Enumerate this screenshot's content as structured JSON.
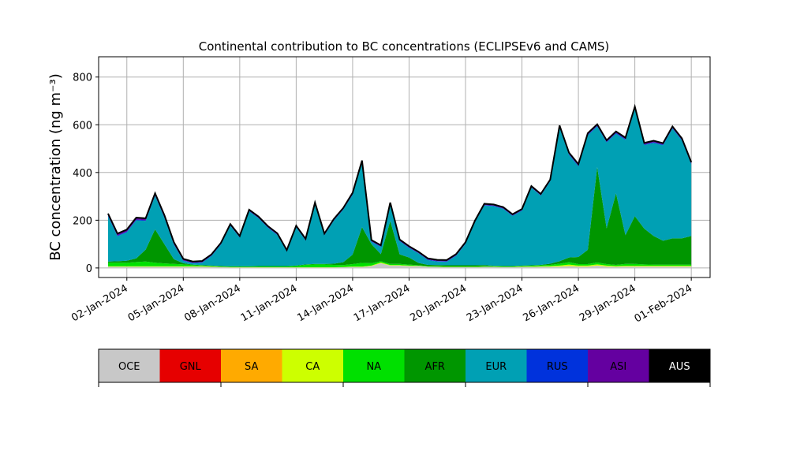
{
  "chart_data": {
    "type": "area",
    "title": "Continental contribution to BC concentrations (ECLIPSEv6 and CAMS)",
    "ylabel": "BC concentration (ng m⁻³)",
    "xlabel": "",
    "stacked": true,
    "grid": true,
    "ylim": [
      -40,
      885
    ],
    "xlim": [
      "2023-12-31T12:00",
      "2024-02-02T00:00"
    ],
    "yticks": [
      0,
      200,
      400,
      600,
      800
    ],
    "ytick_labels": [
      "0",
      "200",
      "400",
      "600",
      "800"
    ],
    "xticks": [
      "2024-01-02",
      "2024-01-05",
      "2024-01-08",
      "2024-01-11",
      "2024-01-14",
      "2024-01-17",
      "2024-01-20",
      "2024-01-23",
      "2024-01-26",
      "2024-01-29",
      "2024-02-01"
    ],
    "xtick_labels": [
      "02-Jan-2024",
      "05-Jan-2024",
      "08-Jan-2024",
      "11-Jan-2024",
      "14-Jan-2024",
      "17-Jan-2024",
      "20-Jan-2024",
      "23-Jan-2024",
      "26-Jan-2024",
      "29-Jan-2024",
      "01-Feb-2024"
    ],
    "x": [
      "2024-01-01T00:00",
      "2024-01-01T12:00",
      "2024-01-02T00:00",
      "2024-01-02T12:00",
      "2024-01-03T00:00",
      "2024-01-03T12:00",
      "2024-01-04T00:00",
      "2024-01-04T12:00",
      "2024-01-05T00:00",
      "2024-01-05T12:00",
      "2024-01-06T00:00",
      "2024-01-06T12:00",
      "2024-01-07T00:00",
      "2024-01-07T12:00",
      "2024-01-08T00:00",
      "2024-01-08T12:00",
      "2024-01-09T00:00",
      "2024-01-09T12:00",
      "2024-01-10T00:00",
      "2024-01-10T12:00",
      "2024-01-11T00:00",
      "2024-01-11T12:00",
      "2024-01-12T00:00",
      "2024-01-12T12:00",
      "2024-01-13T00:00",
      "2024-01-13T12:00",
      "2024-01-14T00:00",
      "2024-01-14T12:00",
      "2024-01-15T00:00",
      "2024-01-15T12:00",
      "2024-01-16T00:00",
      "2024-01-16T12:00",
      "2024-01-17T00:00",
      "2024-01-17T12:00",
      "2024-01-18T00:00",
      "2024-01-18T12:00",
      "2024-01-19T00:00",
      "2024-01-19T12:00",
      "2024-01-20T00:00",
      "2024-01-20T12:00",
      "2024-01-21T00:00",
      "2024-01-21T12:00",
      "2024-01-22T00:00",
      "2024-01-22T12:00",
      "2024-01-23T00:00",
      "2024-01-23T12:00",
      "2024-01-24T00:00",
      "2024-01-24T12:00",
      "2024-01-25T00:00",
      "2024-01-25T12:00",
      "2024-01-26T00:00",
      "2024-01-26T12:00",
      "2024-01-27T00:00",
      "2024-01-27T12:00",
      "2024-01-28T00:00",
      "2024-01-28T12:00",
      "2024-01-29T00:00",
      "2024-01-29T12:00",
      "2024-01-30T00:00",
      "2024-01-30T12:00",
      "2024-01-31T00:00",
      "2024-01-31T12:00",
      "2024-02-01T00:00"
    ],
    "series": [
      {
        "name": "OCE",
        "color": "#c8c8c8",
        "values": [
          5,
          5,
          5,
          5,
          5,
          5,
          5,
          5,
          5,
          5,
          5,
          4,
          3,
          2,
          2,
          2,
          2,
          2,
          2,
          2,
          2,
          2,
          2,
          2,
          2,
          3,
          4,
          4,
          8,
          20,
          10,
          10,
          8,
          8,
          5,
          4,
          3,
          3,
          3,
          3,
          4,
          4,
          3,
          3,
          4,
          4,
          5,
          5,
          6,
          8,
          6,
          6,
          10,
          6,
          5,
          6,
          6,
          6,
          6,
          6,
          6,
          6,
          6
        ]
      },
      {
        "name": "GNL",
        "color": "#e60000",
        "values": [
          0,
          0,
          0,
          0,
          0,
          0,
          0,
          0,
          0,
          0,
          0,
          0,
          0,
          0,
          0,
          0,
          0,
          0,
          0,
          0,
          0,
          0,
          0,
          0,
          0,
          0,
          0,
          0,
          0,
          0,
          0,
          0,
          0,
          0,
          0,
          0,
          0,
          0,
          0,
          0,
          0,
          0,
          0,
          0,
          0,
          0,
          0,
          0,
          0,
          0,
          0,
          0,
          0,
          0,
          0,
          0,
          0,
          0,
          0,
          0,
          0,
          0,
          0
        ]
      },
      {
        "name": "SA",
        "color": "#ffaa00",
        "values": [
          0,
          0,
          0,
          0,
          0,
          0,
          0,
          0,
          0,
          0,
          0,
          0,
          0,
          0,
          0,
          0,
          0,
          0,
          0,
          0,
          0,
          0,
          0,
          0,
          0,
          0,
          0,
          0,
          0,
          0,
          0,
          0,
          0,
          0,
          0,
          0,
          0,
          0,
          0,
          0,
          0,
          0,
          0,
          0,
          0,
          0,
          0,
          0,
          0,
          0,
          0,
          0,
          0,
          0,
          0,
          0,
          0,
          0,
          0,
          0,
          0,
          0,
          0
        ]
      },
      {
        "name": "CA",
        "color": "#cdff00",
        "values": [
          2,
          2,
          2,
          2,
          2,
          2,
          2,
          2,
          2,
          2,
          2,
          2,
          1,
          1,
          1,
          1,
          1,
          1,
          1,
          1,
          1,
          1,
          1,
          1,
          1,
          1,
          2,
          2,
          2,
          3,
          2,
          2,
          2,
          1,
          1,
          1,
          1,
          1,
          1,
          1,
          1,
          1,
          1,
          1,
          2,
          2,
          2,
          3,
          4,
          6,
          4,
          4,
          5,
          4,
          3,
          3,
          3,
          3,
          3,
          3,
          3,
          3,
          3
        ]
      },
      {
        "name": "NA",
        "color": "#00e000",
        "values": [
          15,
          15,
          15,
          18,
          20,
          15,
          12,
          10,
          8,
          5,
          3,
          2,
          2,
          2,
          2,
          2,
          3,
          3,
          3,
          3,
          5,
          10,
          12,
          12,
          10,
          8,
          10,
          15,
          10,
          5,
          5,
          5,
          4,
          2,
          2,
          2,
          2,
          2,
          2,
          2,
          2,
          2,
          2,
          2,
          2,
          3,
          4,
          5,
          8,
          10,
          6,
          6,
          8,
          6,
          5,
          8,
          8,
          6,
          5,
          5,
          5,
          5,
          5
        ]
      },
      {
        "name": "AFR",
        "color": "#009600",
        "values": [
          5,
          6,
          8,
          15,
          50,
          140,
          80,
          20,
          5,
          2,
          2,
          2,
          2,
          2,
          2,
          2,
          2,
          2,
          2,
          2,
          2,
          2,
          2,
          2,
          5,
          12,
          40,
          150,
          80,
          30,
          180,
          40,
          30,
          10,
          5,
          5,
          5,
          5,
          5,
          5,
          5,
          2,
          2,
          2,
          2,
          2,
          2,
          5,
          10,
          20,
          30,
          60,
          400,
          150,
          300,
          120,
          200,
          150,
          120,
          100,
          110,
          110,
          120
        ]
      },
      {
        "name": "EUR",
        "color": "#00a0b4",
        "values": [
          190,
          105,
          120,
          160,
          120,
          140,
          110,
          60,
          10,
          6,
          10,
          40,
          90,
          170,
          120,
          230,
          200,
          160,
          130,
          60,
          160,
          100,
          250,
          120,
          180,
          220,
          250,
          270,
          10,
          30,
          70,
          55,
          40,
          40,
          20,
          15,
          15,
          40,
          90,
          180,
          250,
          250,
          240,
          210,
          230,
          325,
          290,
          345,
          560,
          430,
          380,
          480,
          170,
          360,
          250,
          400,
          450,
          350,
          390,
          400,
          460,
          410,
          300
        ]
      },
      {
        "name": "RUS",
        "color": "#0032dc",
        "values": [
          3,
          3,
          3,
          3,
          3,
          3,
          3,
          3,
          2,
          2,
          2,
          2,
          2,
          2,
          2,
          2,
          2,
          2,
          2,
          2,
          2,
          2,
          2,
          2,
          2,
          2,
          3,
          3,
          2,
          2,
          2,
          2,
          2,
          2,
          2,
          2,
          2,
          2,
          2,
          2,
          2,
          2,
          2,
          2,
          2,
          2,
          2,
          2,
          3,
          3,
          3,
          3,
          3,
          3,
          3,
          3,
          3,
          3,
          3,
          3,
          3,
          3,
          3
        ]
      },
      {
        "name": "ASI",
        "color": "#6400a0",
        "values": [
          8,
          8,
          8,
          8,
          8,
          8,
          8,
          8,
          6,
          5,
          5,
          5,
          5,
          5,
          5,
          5,
          5,
          5,
          5,
          5,
          5,
          5,
          5,
          5,
          5,
          5,
          6,
          6,
          5,
          5,
          5,
          5,
          5,
          5,
          5,
          5,
          5,
          5,
          5,
          5,
          5,
          5,
          5,
          5,
          5,
          5,
          5,
          5,
          6,
          6,
          6,
          6,
          6,
          6,
          6,
          6,
          6,
          6,
          6,
          6,
          6,
          6,
          6
        ]
      },
      {
        "name": "AUS",
        "color": "#000000",
        "values": [
          0,
          0,
          0,
          0,
          0,
          0,
          0,
          0,
          0,
          0,
          0,
          0,
          0,
          0,
          0,
          0,
          0,
          0,
          0,
          0,
          0,
          0,
          0,
          0,
          0,
          0,
          0,
          0,
          0,
          0,
          0,
          0,
          0,
          0,
          0,
          0,
          0,
          0,
          0,
          0,
          0,
          0,
          0,
          0,
          0,
          0,
          0,
          0,
          0,
          0,
          0,
          0,
          0,
          0,
          0,
          0,
          0,
          0,
          0,
          0,
          0,
          0,
          0
        ]
      }
    ],
    "legend": {
      "placement": "bottom",
      "entries": [
        "OCE",
        "GNL",
        "SA",
        "CA",
        "NA",
        "AFR",
        "EUR",
        "RUS",
        "ASI",
        "AUS"
      ],
      "colors": [
        "#c8c8c8",
        "#e60000",
        "#ffaa00",
        "#cdff00",
        "#00e000",
        "#009600",
        "#00a0b4",
        "#0032dc",
        "#6400a0",
        "#000000"
      ],
      "label_colors": [
        "#000000",
        "#000000",
        "#000000",
        "#000000",
        "#000000",
        "#000000",
        "#000000",
        "#000000",
        "#000000",
        "#ffffff"
      ]
    },
    "total_line_color": "#000000",
    "grid_color": "#b0b0b0"
  }
}
